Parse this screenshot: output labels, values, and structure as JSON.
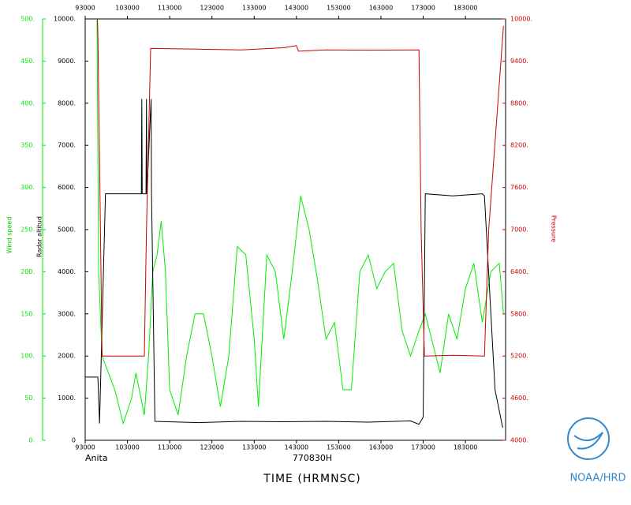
{
  "chart_data": {
    "type": "line",
    "storm": "Anita",
    "flight": "770830H",
    "xlabel": "TIME (HRMNSC)",
    "credit": "NOAA/HRD",
    "ylabel": "Wind speed",
    "y2label": "Radar altitud",
    "y3label": "Pressure",
    "xlim": [
      93000,
      192500
    ],
    "xticks": [
      93000,
      103000,
      113000,
      123000,
      133000,
      143000,
      153000,
      163000,
      173000,
      183000
    ],
    "ylim": [
      0,
      500
    ],
    "yticks": [
      {
        "value": 0,
        "label": "0."
      },
      {
        "value": 50,
        "label": "50."
      },
      {
        "value": 100,
        "label": "100."
      },
      {
        "value": 150,
        "label": "150."
      },
      {
        "value": 200,
        "label": "200."
      },
      {
        "value": 250,
        "label": "250."
      },
      {
        "value": 300,
        "label": "300."
      },
      {
        "value": 350,
        "label": "350."
      },
      {
        "value": 400,
        "label": "400."
      },
      {
        "value": 450,
        "label": "450."
      },
      {
        "value": 500,
        "label": "500."
      }
    ],
    "y2lim": [
      0,
      10000
    ],
    "y2ticks": [
      0,
      {
        "value": 1000,
        "label": "1000."
      },
      {
        "value": 2000,
        "label": "2000."
      },
      {
        "value": 3000,
        "label": "3000."
      },
      {
        "value": 4000,
        "label": "4000."
      },
      {
        "value": 5000,
        "label": "5000."
      },
      {
        "value": 6000,
        "label": "6000."
      },
      {
        "value": 7000,
        "label": "7000."
      },
      {
        "value": 8000,
        "label": "8000."
      },
      {
        "value": 9000,
        "label": "9000."
      },
      {
        "value": 10000,
        "label": "10000."
      }
    ],
    "y3lim": [
      4000,
      10000
    ],
    "y3ticks": [
      {
        "value": 4000,
        "label": "4000."
      },
      {
        "value": 4600,
        "label": "4600."
      },
      {
        "value": 5200,
        "label": "5200."
      },
      {
        "value": 5800,
        "label": "5800."
      },
      {
        "value": 6400,
        "label": "6400."
      },
      {
        "value": 7000,
        "label": "7000."
      },
      {
        "value": 7600,
        "label": "7600."
      },
      {
        "value": 8200,
        "label": "8200."
      },
      {
        "value": 8800,
        "label": "8800."
      },
      {
        "value": 9400,
        "label": "9400."
      },
      {
        "value": 10000,
        "label": "10000."
      }
    ],
    "series": [
      {
        "name": "Wind speed",
        "color": "#00ee00",
        "axis": "y",
        "x": [
          95800,
          96200,
          97000,
          100000,
          102000,
          104000,
          105000,
          107000,
          108000,
          109000,
          110000,
          111000,
          112000,
          113000,
          115000,
          117000,
          119000,
          121000,
          123000,
          125000,
          127000,
          129000,
          131000,
          133000,
          134000,
          136000,
          138000,
          140000,
          142000,
          144000,
          146000,
          148000,
          150000,
          152000,
          154000,
          156000,
          158000,
          160000,
          162000,
          164000,
          166000,
          168000,
          170000,
          172000,
          173500,
          175000,
          177000,
          179000,
          181000,
          183000,
          185000,
          187000,
          189000,
          191000,
          192000
        ],
        "values": [
          500,
          200,
          100,
          60,
          20,
          50,
          80,
          30,
          100,
          200,
          220,
          260,
          200,
          60,
          30,
          100,
          150,
          150,
          100,
          40,
          100,
          230,
          220,
          120,
          40,
          220,
          200,
          120,
          200,
          290,
          250,
          190,
          120,
          140,
          60,
          60,
          200,
          220,
          180,
          200,
          210,
          130,
          100,
          130,
          150,
          120,
          80,
          150,
          120,
          180,
          210,
          140,
          200,
          210,
          150
        ]
      },
      {
        "name": "Radar altitud",
        "color": "#000000",
        "axis": "y2",
        "x": [
          93000,
          96000,
          96400,
          97800,
          106300,
          106400,
          106500,
          107400,
          107500,
          107600,
          108600,
          108700,
          109500,
          120000,
          130000,
          140000,
          150000,
          160000,
          170000,
          172000,
          173000,
          173500,
          180000,
          187000,
          187500,
          190000,
          191800
        ],
        "values": [
          1500,
          1500,
          400,
          5850,
          5850,
          8100,
          5850,
          5850,
          8100,
          5850,
          8100,
          5850,
          450,
          420,
          450,
          440,
          450,
          430,
          460,
          380,
          550,
          5850,
          5800,
          5850,
          5800,
          1200,
          300
        ]
      },
      {
        "name": "Pressure",
        "color": "#cc0000",
        "axis": "y3",
        "x": [
          95900,
          96000,
          97000,
          107000,
          107500,
          108500,
          120000,
          130000,
          140000,
          143000,
          143500,
          150000,
          160000,
          172000,
          172500,
          173300,
          180000,
          187500,
          188500,
          192000
        ],
        "values": [
          10000,
          9800,
          5200,
          5200,
          7000,
          9580,
          9570,
          9560,
          9590,
          9620,
          9540,
          9560,
          9555,
          9560,
          7000,
          5200,
          5210,
          5200,
          7000,
          9900
        ]
      }
    ]
  }
}
